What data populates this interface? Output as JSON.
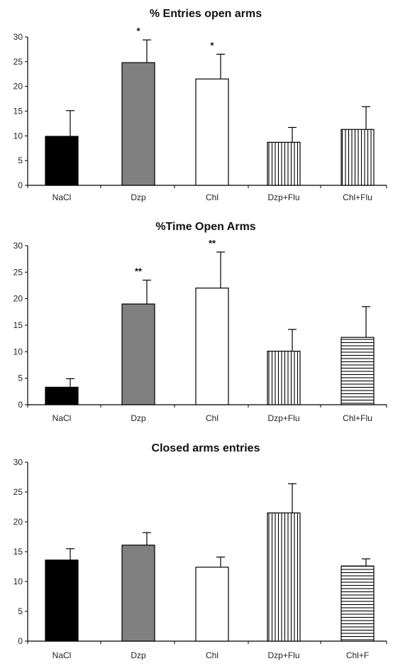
{
  "chart_data": [
    {
      "type": "bar",
      "title": "% Entries open arms",
      "categories": [
        "NaCl",
        "Dzp",
        "Chl",
        "Dzp+Flu",
        "Chl+Flu"
      ],
      "values": [
        9.9,
        24.8,
        21.5,
        8.7,
        11.3
      ],
      "errors": [
        5.2,
        4.6,
        5.0,
        3.0,
        4.6
      ],
      "significance": [
        "",
        "*",
        "*",
        "",
        ""
      ],
      "fills": [
        "solid-black",
        "solid-gray",
        "white",
        "vertical-lines",
        "vertical-lines"
      ],
      "ylim": [
        0,
        30
      ],
      "yticks": [
        0,
        5,
        10,
        15,
        20,
        25,
        30
      ]
    },
    {
      "type": "bar",
      "title": "%Time Open Arms",
      "categories": [
        "NaCl",
        "Dzp",
        "Chl",
        "Dzp+Flu",
        "Chl+Flu"
      ],
      "values": [
        3.3,
        19.0,
        22.0,
        10.1,
        12.7
      ],
      "errors": [
        1.6,
        4.5,
        6.8,
        4.1,
        5.8
      ],
      "significance": [
        "",
        "**",
        "**",
        "",
        ""
      ],
      "fills": [
        "solid-black",
        "solid-gray",
        "white",
        "vertical-lines",
        "horizontal-lines"
      ],
      "ylim": [
        0,
        30
      ],
      "yticks": [
        0,
        5,
        10,
        15,
        20,
        25,
        30
      ]
    },
    {
      "type": "bar",
      "title": "Closed arms entries",
      "categories": [
        "NaCl",
        "Dzp",
        "Chl",
        "Dzp+Flu",
        "Chl+F"
      ],
      "values": [
        13.6,
        16.1,
        12.4,
        21.5,
        12.6
      ],
      "errors": [
        1.9,
        2.1,
        1.7,
        4.9,
        1.2
      ],
      "significance": [
        "",
        "",
        "",
        "",
        ""
      ],
      "fills": [
        "solid-black",
        "solid-gray",
        "white",
        "vertical-lines",
        "horizontal-lines"
      ],
      "ylim": [
        0,
        30
      ],
      "yticks": [
        0,
        5,
        10,
        15,
        20,
        25,
        30
      ]
    }
  ],
  "colors": {
    "bar_black": "#000000",
    "bar_gray": "#808080",
    "bar_white": "#ffffff",
    "stroke": "#000000"
  }
}
